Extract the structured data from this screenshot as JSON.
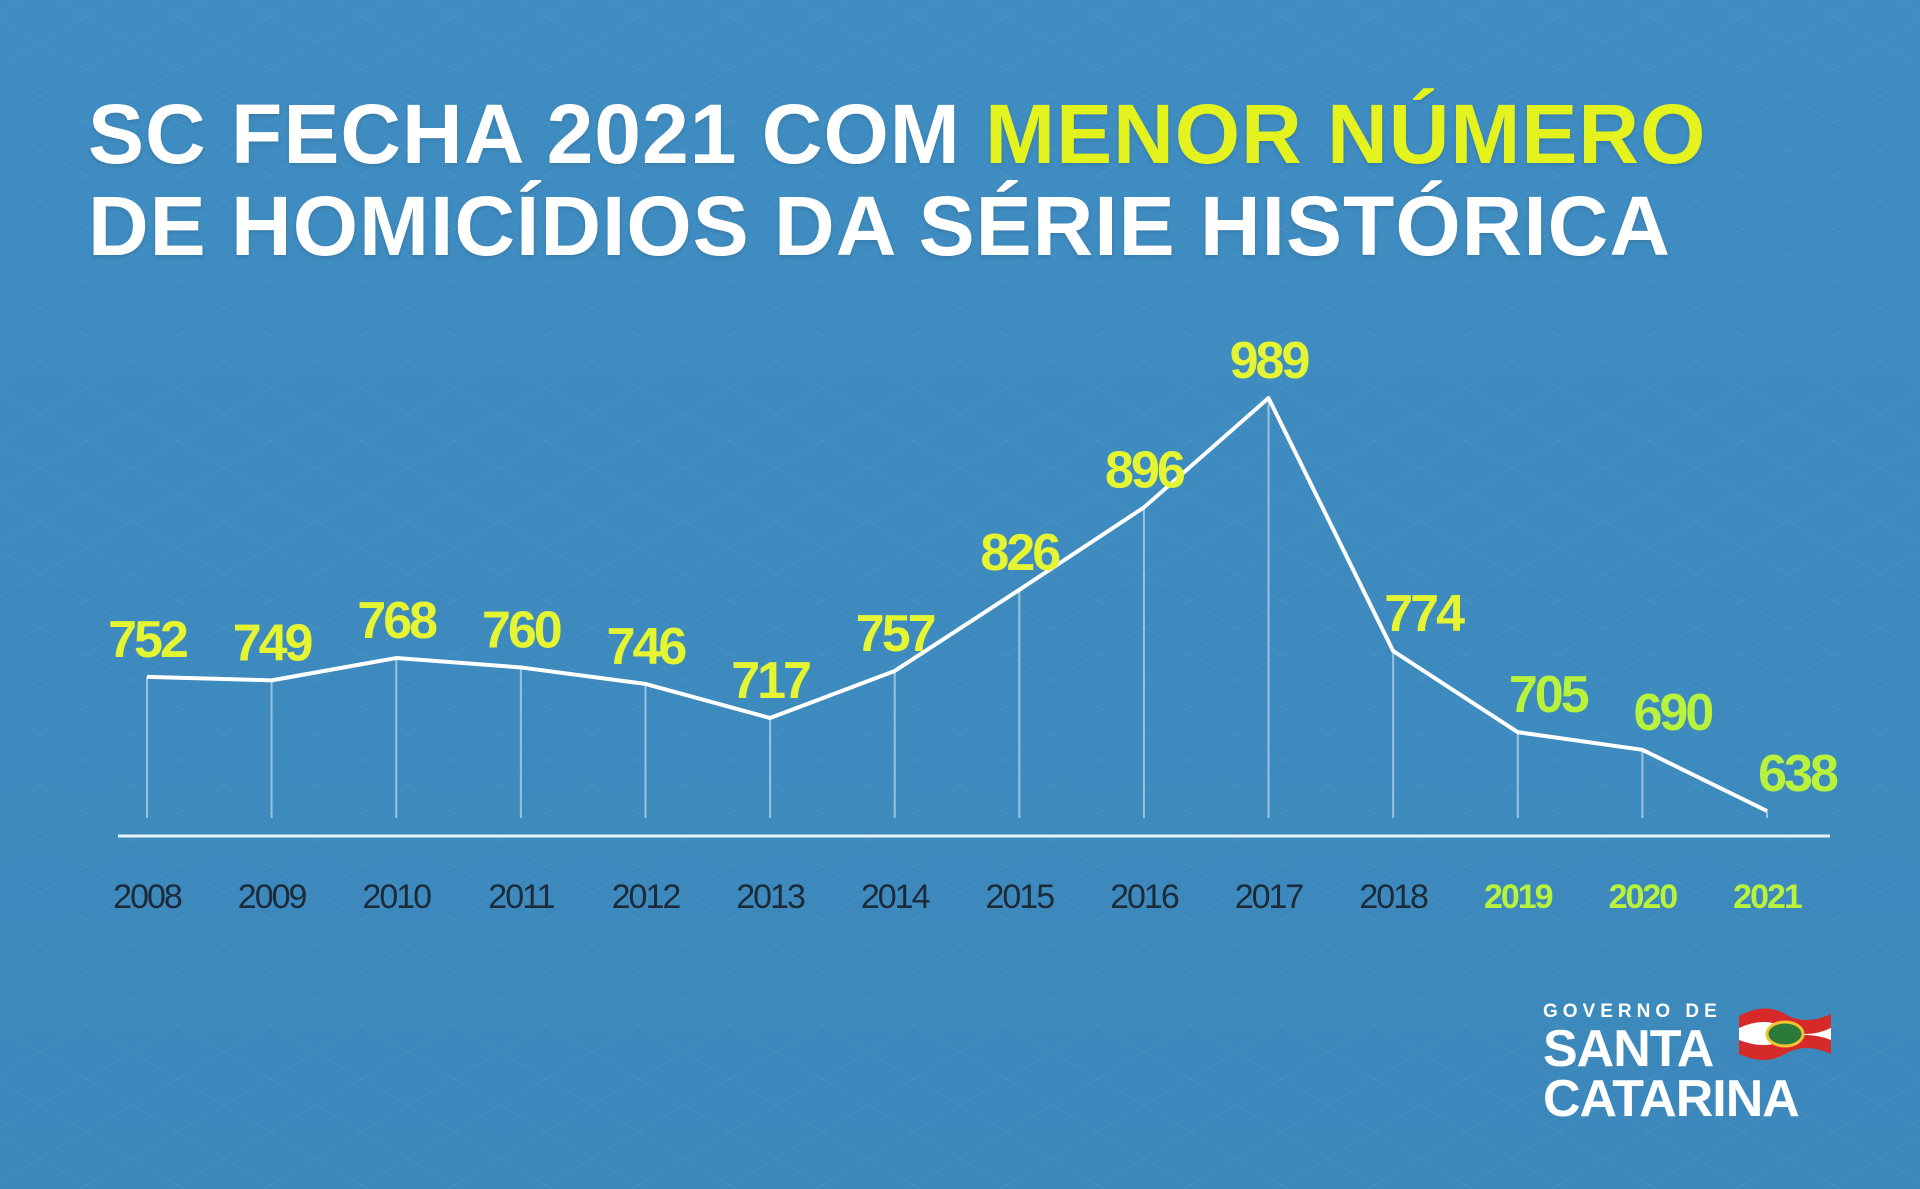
{
  "chart_data": {
    "type": "line",
    "title": [
      "SC FECHA 2021 COM",
      "MENOR NÚMERO",
      "DE HOMICÍDIOS DA SÉRIE HISTÓRICA"
    ],
    "categories": [
      "2008",
      "2009",
      "2010",
      "2011",
      "2012",
      "2013",
      "2014",
      "2015",
      "2016",
      "2017",
      "2018",
      "2019",
      "2020",
      "2021"
    ],
    "values": [
      752,
      749,
      768,
      760,
      746,
      717,
      757,
      826,
      896,
      989,
      774,
      705,
      690,
      638
    ],
    "color": "#ffffff",
    "label_colors": [
      "#e6f531",
      "#e6f531",
      "#e6f531",
      "#e6f531",
      "#e6f531",
      "#e6f531",
      "#e6f531",
      "#e6f531",
      "#e6f531",
      "#e6f531",
      "#e6f531",
      "#b9f23c",
      "#b9f23c",
      "#b9f23c"
    ],
    "category_colors": [
      "#1c2b3a",
      "#1c2b3a",
      "#1c2b3a",
      "#1c2b3a",
      "#1c2b3a",
      "#1c2b3a",
      "#1c2b3a",
      "#1c2b3a",
      "#1c2b3a",
      "#1c2b3a",
      "#1c2b3a",
      "#b9f23c",
      "#b9f23c",
      "#b9f23c"
    ]
  },
  "logo": {
    "line1": "GOVERNO DE",
    "line2": "SANTA",
    "line3": "CATARINA"
  }
}
